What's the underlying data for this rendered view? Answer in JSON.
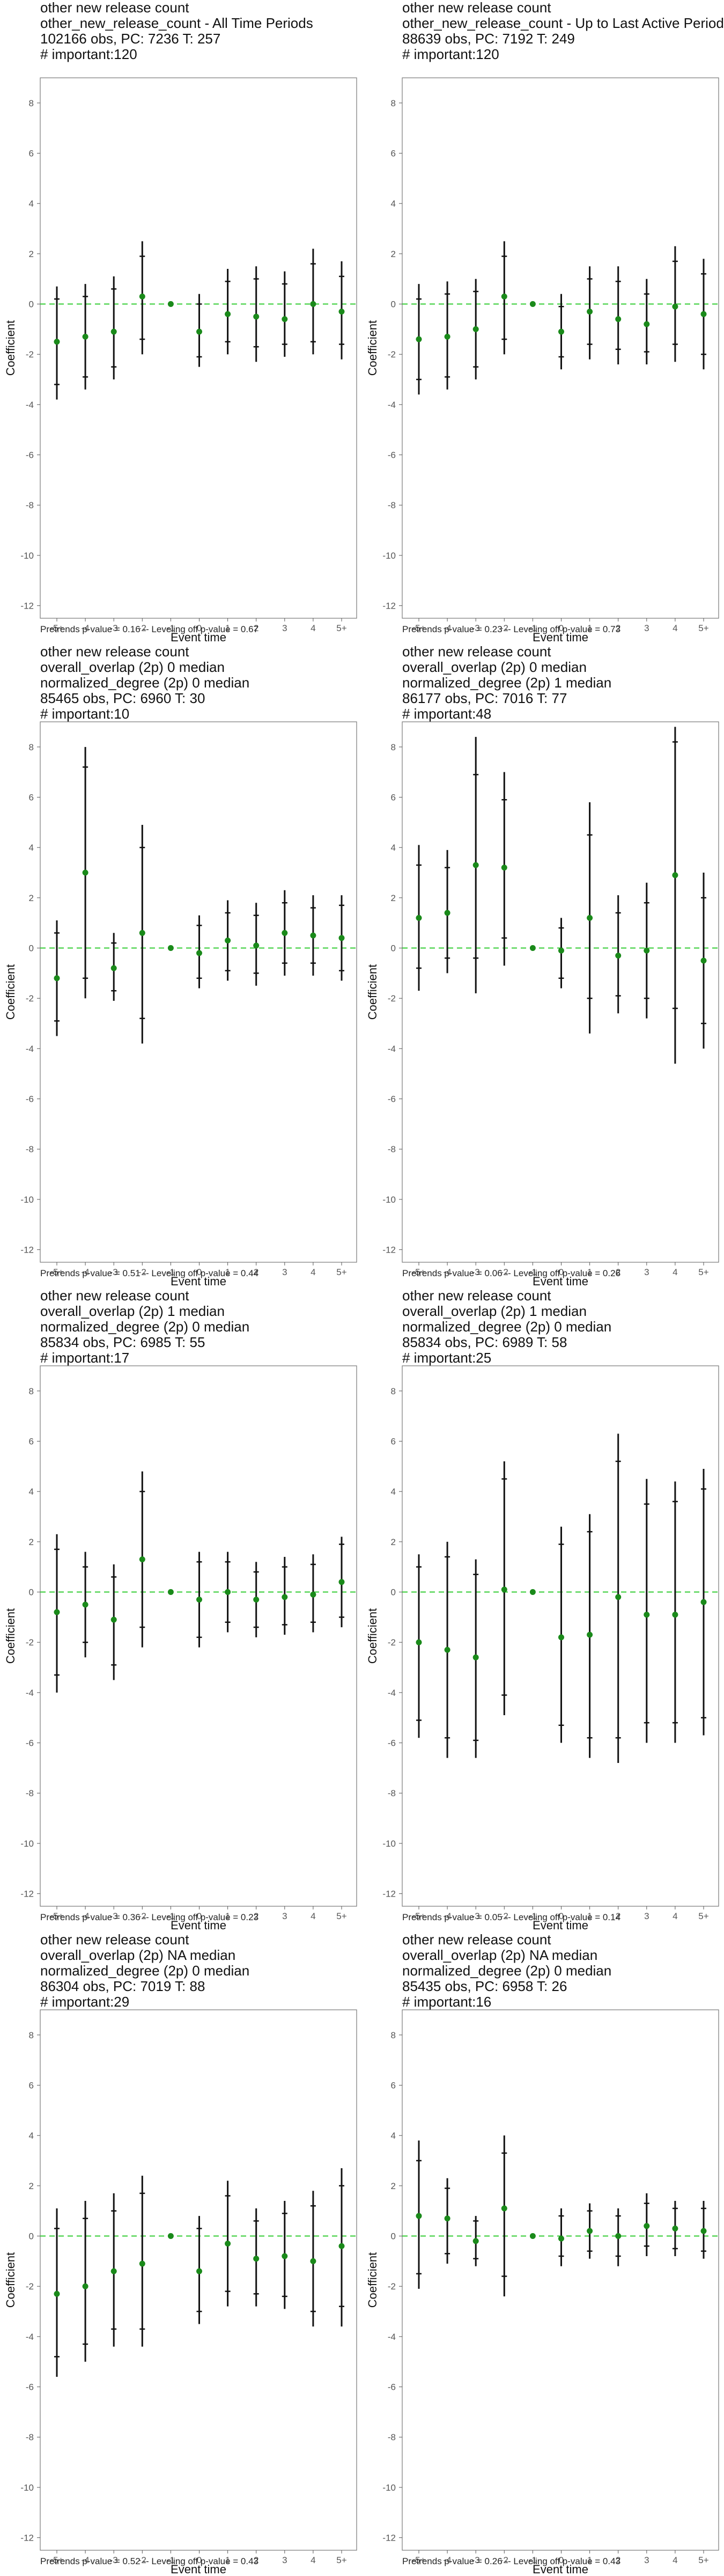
{
  "chart_data": [
    {
      "type": "scatter",
      "title_lines": [
        "other new release count",
        "other_new_release_count - All Time Periods",
        "102166 obs, PC: 7236 T: 257",
        "# important:120"
      ],
      "xlabel": "Event time",
      "ylabel": "Coefficient",
      "categories": [
        "-5+",
        "-4",
        "-3",
        "-2",
        "-1",
        "0",
        "1",
        "2",
        "3",
        "4",
        "5+"
      ],
      "ylim": [
        -12.5,
        9
      ],
      "yticks": [
        8,
        6,
        4,
        2,
        0,
        -2,
        -4,
        -6,
        -8,
        -10,
        -12
      ],
      "reference_line": 0,
      "estimate": [
        -1.5,
        -1.3,
        -1.1,
        0.3,
        0.0,
        -1.1,
        -0.4,
        -0.5,
        -0.6,
        0.0,
        -0.3
      ],
      "ci_low": [
        -3.8,
        -3.4,
        -3.0,
        -2.0,
        0.0,
        -2.5,
        -2.0,
        -2.3,
        -2.1,
        -2.0,
        -2.2
      ],
      "ci_high": [
        0.7,
        0.8,
        1.1,
        2.5,
        0.0,
        0.4,
        1.4,
        1.5,
        1.3,
        2.2,
        1.7
      ],
      "inner_low": [
        -3.2,
        -2.9,
        -2.5,
        -1.4,
        0.0,
        -2.1,
        -1.5,
        -1.7,
        -1.6,
        -1.5,
        -1.6
      ],
      "inner_high": [
        0.2,
        0.3,
        0.6,
        1.9,
        0.0,
        0.0,
        0.9,
        1.0,
        0.8,
        1.6,
        1.1
      ],
      "footnote": "Pretrends p-value = 0.16 -- Leveling off p-value = 0.67"
    },
    {
      "type": "scatter",
      "title_lines": [
        "other new release count",
        "other_new_release_count - Up to Last Active Period",
        "88639 obs, PC: 7192 T: 249",
        "# important:120"
      ],
      "xlabel": "Event time",
      "ylabel": "Coefficient",
      "categories": [
        "-5+",
        "-4",
        "-3",
        "-2",
        "-1",
        "0",
        "1",
        "2",
        "3",
        "4",
        "5+"
      ],
      "ylim": [
        -12.5,
        9
      ],
      "yticks": [
        8,
        6,
        4,
        2,
        0,
        -2,
        -4,
        -6,
        -8,
        -10,
        -12
      ],
      "reference_line": 0,
      "estimate": [
        -1.4,
        -1.3,
        -1.0,
        0.3,
        0.0,
        -1.1,
        -0.3,
        -0.6,
        -0.8,
        -0.1,
        -0.4
      ],
      "ci_low": [
        -3.6,
        -3.4,
        -3.0,
        -2.0,
        0.0,
        -2.6,
        -2.2,
        -2.4,
        -2.4,
        -2.3,
        -2.6
      ],
      "ci_high": [
        0.8,
        0.9,
        1.0,
        2.5,
        0.0,
        0.4,
        1.5,
        1.5,
        1.0,
        2.3,
        1.8
      ],
      "inner_low": [
        -3.0,
        -2.9,
        -2.5,
        -1.4,
        0.0,
        -2.1,
        -1.6,
        -1.8,
        -1.9,
        -1.6,
        -2.0
      ],
      "inner_high": [
        0.2,
        0.4,
        0.5,
        1.9,
        0.0,
        -0.1,
        1.0,
        0.9,
        0.4,
        1.7,
        1.2
      ],
      "footnote": "Pretrends p-value = 0.23 -- Leveling off p-value = 0.73"
    },
    {
      "type": "scatter",
      "title_lines": [
        "other new release count",
        "overall_overlap (2p) 0 median",
        "normalized_degree (2p) 0 median",
        "85465 obs, PC: 6960 T: 30",
        "# important:10"
      ],
      "xlabel": "Event time",
      "ylabel": "Coefficient",
      "categories": [
        "-5+",
        "-4",
        "-3",
        "-2",
        "-1",
        "0",
        "1",
        "2",
        "3",
        "4",
        "5+"
      ],
      "ylim": [
        -12.5,
        9
      ],
      "yticks": [
        8,
        6,
        4,
        2,
        0,
        -2,
        -4,
        -6,
        -8,
        -10,
        -12
      ],
      "reference_line": 0,
      "estimate": [
        -1.2,
        3.0,
        -0.8,
        0.6,
        0.0,
        -0.2,
        0.3,
        0.1,
        0.6,
        0.5,
        0.4
      ],
      "ci_low": [
        -3.5,
        -2.0,
        -2.1,
        -3.8,
        0.0,
        -1.6,
        -1.3,
        -1.5,
        -1.1,
        -1.1,
        -1.3
      ],
      "ci_high": [
        1.1,
        8.0,
        0.6,
        4.9,
        0.0,
        1.3,
        1.9,
        1.8,
        2.3,
        2.1,
        2.1
      ],
      "inner_low": [
        -2.9,
        -1.2,
        -1.7,
        -2.8,
        0.0,
        -1.2,
        -0.9,
        -1.0,
        -0.6,
        -0.6,
        -0.9
      ],
      "inner_high": [
        0.6,
        7.2,
        0.2,
        4.0,
        0.0,
        0.9,
        1.4,
        1.3,
        1.8,
        1.6,
        1.7
      ],
      "footnote": "Pretrends p-value = 0.51 -- Leveling off p-value = 0.44"
    },
    {
      "type": "scatter",
      "title_lines": [
        "other new release count",
        "overall_overlap (2p) 0 median",
        "normalized_degree (2p) 1 median",
        "86177 obs, PC: 7016 T: 77",
        "# important:48"
      ],
      "xlabel": "Event time",
      "ylabel": "Coefficient",
      "categories": [
        "-5+",
        "-4",
        "-3",
        "-2",
        "-1",
        "0",
        "1",
        "2",
        "3",
        "4",
        "5+"
      ],
      "ylim": [
        -12.5,
        9
      ],
      "yticks": [
        8,
        6,
        4,
        2,
        0,
        -2,
        -4,
        -6,
        -8,
        -10,
        -12
      ],
      "reference_line": 0,
      "estimate": [
        1.2,
        1.4,
        3.3,
        3.2,
        0.0,
        -0.1,
        1.2,
        -0.3,
        -0.1,
        2.9,
        -0.5
      ],
      "ci_low": [
        -1.7,
        -1.0,
        -1.8,
        -0.7,
        0.0,
        -1.6,
        -3.4,
        -2.6,
        -2.8,
        -4.6,
        -4.0
      ],
      "ci_high": [
        4.1,
        3.9,
        8.4,
        7.0,
        0.0,
        1.2,
        5.8,
        2.1,
        2.6,
        8.8,
        3.0
      ],
      "inner_low": [
        -0.8,
        -0.4,
        -0.4,
        0.4,
        0.0,
        -1.2,
        -2.0,
        -1.9,
        -2.0,
        -2.4,
        -3.0
      ],
      "inner_high": [
        3.3,
        3.2,
        6.9,
        5.9,
        0.0,
        0.8,
        4.5,
        1.4,
        1.8,
        8.2,
        2.0
      ],
      "footnote": "Pretrends p-value = 0.06 -- Leveling off p-value = 0.26"
    },
    {
      "type": "scatter",
      "title_lines": [
        "other new release count",
        "overall_overlap (2p) 1 median",
        "normalized_degree (2p) 0 median",
        "85834 obs, PC: 6985 T: 55",
        "# important:17"
      ],
      "xlabel": "Event time",
      "ylabel": "Coefficient",
      "categories": [
        "-5+",
        "-4",
        "-3",
        "-2",
        "-1",
        "0",
        "1",
        "2",
        "3",
        "4",
        "5+"
      ],
      "ylim": [
        -12.5,
        9
      ],
      "yticks": [
        8,
        6,
        4,
        2,
        0,
        -2,
        -4,
        -6,
        -8,
        -10,
        -12
      ],
      "reference_line": 0,
      "estimate": [
        -0.8,
        -0.5,
        -1.1,
        1.3,
        0.0,
        -0.3,
        0.0,
        -0.3,
        -0.2,
        -0.1,
        0.4
      ],
      "ci_low": [
        -4.0,
        -2.6,
        -3.5,
        -2.2,
        0.0,
        -2.2,
        -1.6,
        -1.8,
        -1.7,
        -1.6,
        -1.4
      ],
      "ci_high": [
        2.3,
        1.6,
        1.1,
        4.8,
        0.0,
        1.6,
        1.6,
        1.2,
        1.4,
        1.5,
        2.2
      ],
      "inner_low": [
        -3.3,
        -2.0,
        -2.9,
        -1.4,
        0.0,
        -1.8,
        -1.2,
        -1.4,
        -1.3,
        -1.2,
        -1.0
      ],
      "inner_high": [
        1.7,
        1.0,
        0.6,
        4.0,
        0.0,
        1.2,
        1.2,
        0.8,
        1.0,
        1.1,
        1.9
      ],
      "footnote": "Pretrends p-value = 0.36 -- Leveling off p-value = 0.23"
    },
    {
      "type": "scatter",
      "title_lines": [
        "other new release count",
        "overall_overlap (2p) 1 median",
        "normalized_degree (2p) 0 median",
        "85834 obs, PC: 6989 T: 58",
        "# important:25"
      ],
      "xlabel": "Event time",
      "ylabel": "Coefficient",
      "categories": [
        "-5+",
        "-4",
        "-3",
        "-2",
        "-1",
        "0",
        "1",
        "2",
        "3",
        "4",
        "5+"
      ],
      "ylim": [
        -12.5,
        9
      ],
      "yticks": [
        8,
        6,
        4,
        2,
        0,
        -2,
        -4,
        -6,
        -8,
        -10,
        -12
      ],
      "reference_line": 0,
      "estimate": [
        -2.0,
        -2.3,
        -2.6,
        0.1,
        0.0,
        -1.8,
        -1.7,
        -0.2,
        -0.9,
        -0.9,
        -0.4
      ],
      "ci_low": [
        -5.8,
        -6.6,
        -6.6,
        -4.9,
        0.0,
        -6.0,
        -6.6,
        -6.8,
        -6.0,
        -6.0,
        -5.7
      ],
      "ci_high": [
        1.5,
        2.0,
        1.3,
        5.2,
        0.0,
        2.6,
        3.1,
        6.3,
        4.5,
        4.4,
        4.9
      ],
      "inner_low": [
        -5.1,
        -5.8,
        -5.9,
        -4.1,
        0.0,
        -5.3,
        -5.8,
        -5.8,
        -5.2,
        -5.2,
        -5.0
      ],
      "inner_high": [
        1.0,
        1.4,
        0.7,
        4.5,
        0.0,
        1.9,
        2.4,
        5.2,
        3.5,
        3.6,
        4.1
      ],
      "footnote": "Pretrends p-value = 0.05 -- Leveling off p-value = 0.14"
    },
    {
      "type": "scatter",
      "title_lines": [
        "other new release count",
        "overall_overlap (2p) NA median",
        "normalized_degree (2p) 0 median",
        "86304 obs, PC: 7019 T: 88",
        "# important:29"
      ],
      "xlabel": "Event time",
      "ylabel": "Coefficient",
      "categories": [
        "-5+",
        "-4",
        "-3",
        "-2",
        "-1",
        "0",
        "1",
        "2",
        "3",
        "4",
        "5+"
      ],
      "ylim": [
        -12.5,
        9
      ],
      "yticks": [
        8,
        6,
        4,
        2,
        0,
        -2,
        -4,
        -6,
        -8,
        -10,
        -12
      ],
      "reference_line": 0,
      "estimate": [
        -2.3,
        -2.0,
        -1.4,
        -1.1,
        0.0,
        -1.4,
        -0.3,
        -0.9,
        -0.8,
        -1.0,
        -0.4
      ],
      "ci_low": [
        -5.6,
        -5.0,
        -4.4,
        -4.4,
        0.0,
        -3.5,
        -2.8,
        -2.8,
        -2.9,
        -3.6,
        -3.6
      ],
      "ci_high": [
        1.1,
        1.4,
        1.7,
        2.4,
        0.0,
        0.8,
        2.2,
        1.1,
        1.4,
        1.8,
        2.7
      ],
      "inner_low": [
        -4.8,
        -4.3,
        -3.7,
        -3.7,
        0.0,
        -3.0,
        -2.2,
        -2.3,
        -2.4,
        -3.0,
        -2.8
      ],
      "inner_high": [
        0.3,
        0.7,
        1.0,
        1.7,
        0.0,
        0.3,
        1.6,
        0.6,
        0.9,
        1.2,
        2.0
      ],
      "footnote": "Pretrends p-value = 0.52 -- Leveling off p-value = 0.43"
    },
    {
      "type": "scatter",
      "title_lines": [
        "other new release count",
        "overall_overlap (2p) NA median",
        "normalized_degree (2p) 0 median",
        "85435 obs, PC: 6958 T: 26",
        "# important:16"
      ],
      "xlabel": "Event time",
      "ylabel": "Coefficient",
      "categories": [
        "-5+",
        "-4",
        "-3",
        "-2",
        "-1",
        "0",
        "1",
        "2",
        "3",
        "4",
        "5+"
      ],
      "ylim": [
        -12.5,
        9
      ],
      "yticks": [
        8,
        6,
        4,
        2,
        0,
        -2,
        -4,
        -6,
        -8,
        -10,
        -12
      ],
      "reference_line": 0,
      "estimate": [
        0.8,
        0.7,
        -0.2,
        1.1,
        0.0,
        -0.1,
        0.2,
        0.0,
        0.4,
        0.3,
        0.2
      ],
      "ci_low": [
        -2.1,
        -1.1,
        -1.2,
        -2.4,
        0.0,
        -1.2,
        -0.9,
        -1.2,
        -0.8,
        -0.8,
        -0.9
      ],
      "ci_high": [
        3.8,
        2.3,
        0.8,
        4.0,
        0.0,
        1.1,
        1.3,
        1.1,
        1.7,
        1.4,
        1.4
      ],
      "inner_low": [
        -1.5,
        -0.7,
        -0.9,
        -1.6,
        0.0,
        -0.8,
        -0.6,
        -0.8,
        -0.4,
        -0.5,
        -0.6
      ],
      "inner_high": [
        3.0,
        1.9,
        0.6,
        3.3,
        0.0,
        0.8,
        1.0,
        0.8,
        1.3,
        1.1,
        1.1
      ],
      "footnote": "Pretrends p-value = 0.26 -- Leveling off p-value = 0.43"
    }
  ],
  "colors": {
    "estimate_point": "#1a8a1a",
    "reference_line": "#33cc33",
    "error_bar": "#111111",
    "panel_border": "#777777",
    "tick_text": "#555555"
  }
}
